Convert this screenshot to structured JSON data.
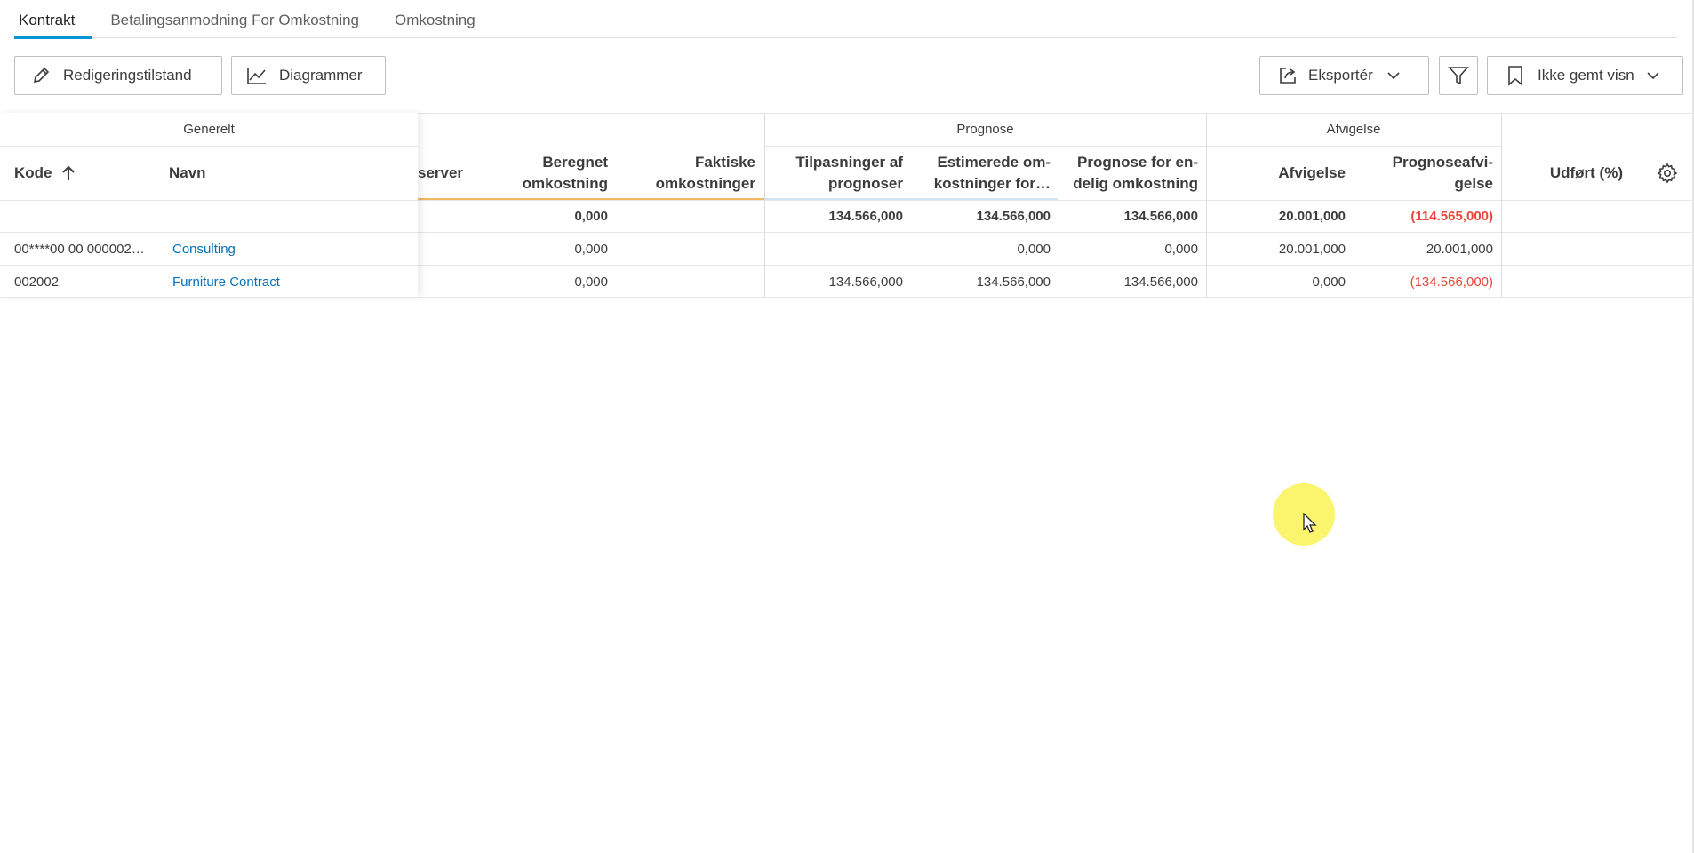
{
  "tabs": [
    {
      "label": "Kontrakt",
      "active": true
    },
    {
      "label": "Betalingsanmodning For Omkostning",
      "active": false
    },
    {
      "label": "Omkostning",
      "active": false
    }
  ],
  "toolbar": {
    "edit_mode": "Redigeringstilstand",
    "charts": "Diagrammer",
    "export": "Eksportér",
    "view": "Ikke gemt visn"
  },
  "table": {
    "groups": {
      "general": "Generelt",
      "forecast": "Prognose",
      "deviation": "Afvigelse"
    },
    "columns": {
      "code": "Kode",
      "name": "Navn",
      "reserved_partial": "server",
      "calc_cost": [
        "Beregnet",
        "omkostning"
      ],
      "actual_cost": [
        "Faktiske",
        "omkostninger"
      ],
      "forecast_adjust": [
        "Tilpasninger af",
        "prognoser"
      ],
      "estimated_cost": [
        "Estimerede om-",
        "kostninger for…"
      ],
      "forecast_final": [
        "Prognose for en-",
        "delig omkostning"
      ],
      "deviation": "Afvigelse",
      "forecast_deviation": [
        "Prognoseafvi-",
        "gelse"
      ],
      "done_pct": "Udført (%)"
    },
    "totals": {
      "calc_cost": "0,000",
      "actual_cost": "",
      "forecast_adjust": "134.566,000",
      "estimated_cost": "134.566,000",
      "forecast_final": "134.566,000",
      "deviation": "20.001,000",
      "forecast_deviation": "(114.565,000)"
    },
    "rows": [
      {
        "code": "00****00 00 000002…",
        "name": "Consulting",
        "calc_cost": "0,000",
        "actual_cost": "",
        "forecast_adjust": "",
        "estimated_cost": "0,000",
        "forecast_final": "0,000",
        "deviation": "20.001,000",
        "forecast_deviation": "20.001,000"
      },
      {
        "code": "002002",
        "name": "Furniture Contract",
        "calc_cost": "0,000",
        "actual_cost": "",
        "forecast_adjust": "134.566,000",
        "estimated_cost": "134.566,000",
        "forecast_final": "134.566,000",
        "deviation": "0,000",
        "forecast_deviation": "(134.566,000)"
      }
    ]
  },
  "colors": {
    "accent": "#0696d7",
    "link": "#0670b8",
    "negative": "#e8473a"
  }
}
